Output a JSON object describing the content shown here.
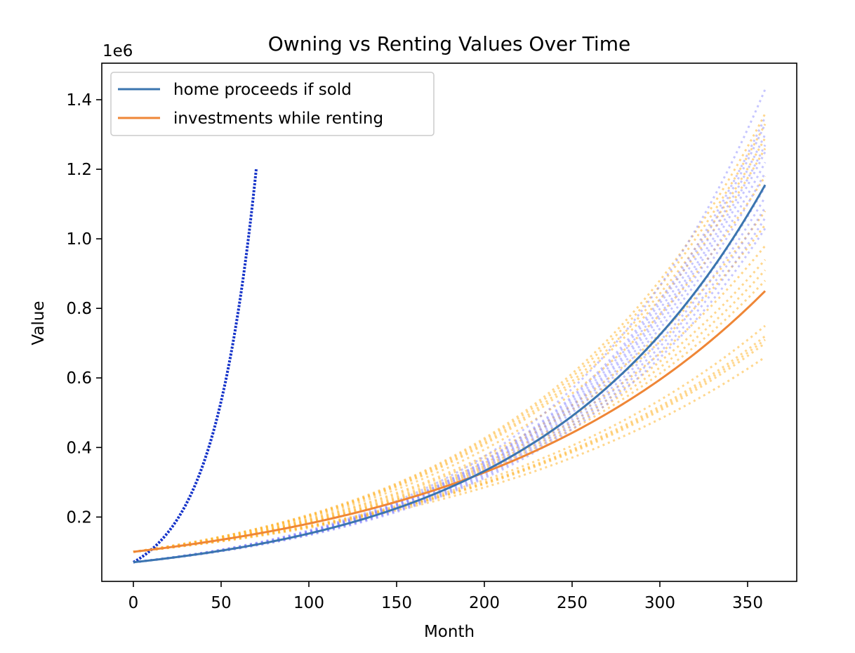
{
  "chart_data": {
    "type": "line",
    "title": "Owning vs Renting Values Over Time",
    "xlabel": "Month",
    "ylabel": "Value",
    "y_offset_label": "1e6",
    "xlim": [
      -18,
      378
    ],
    "ylim": [
      0.015,
      1.505
    ],
    "x_ticks": [
      0,
      50,
      100,
      150,
      200,
      250,
      300,
      350
    ],
    "x_tick_labels": [
      "0",
      "50",
      "100",
      "150",
      "200",
      "250",
      "300",
      "350"
    ],
    "y_ticks": [
      0.2,
      0.4,
      0.6,
      0.8,
      1.0,
      1.2,
      1.4
    ],
    "y_tick_labels": [
      "0.2",
      "0.4",
      "0.6",
      "0.8",
      "1.0",
      "1.2",
      "1.4"
    ],
    "grid": false,
    "legend_placement": "top-left",
    "colors": {
      "home_main": "#3b75af",
      "invest_main": "#ef8636",
      "home_sim": "#8080ff",
      "invest_sim": "#ffb732",
      "home_start": "#1533c9"
    },
    "series": [
      {
        "name": "home proceeds if sold",
        "x_start": 0,
        "x_end": 360,
        "y_start": 0.07,
        "y_end": 1.155
      },
      {
        "name": "investments while renting",
        "x_start": 0,
        "x_end": 360,
        "y_start": 0.1,
        "y_end": 0.85
      }
    ],
    "simulations": {
      "home_end_values": [
        1.43,
        1.35,
        1.33,
        1.3,
        1.27,
        1.25,
        1.22,
        1.19,
        1.15,
        1.12,
        1.09,
        1.06,
        1.03
      ],
      "invest_end_values": [
        1.36,
        1.33,
        1.29,
        1.26,
        1.18,
        1.08,
        1.04,
        0.98,
        0.94,
        0.91,
        0.88,
        0.75,
        0.72,
        0.71,
        0.7,
        0.66
      ]
    }
  }
}
